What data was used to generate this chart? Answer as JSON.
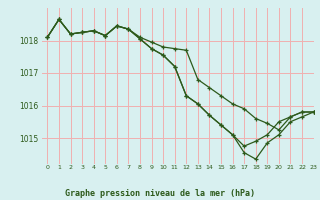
{
  "title": "Graphe pression niveau de la mer (hPa)",
  "bg_color": "#d8f0f0",
  "plot_bg_color": "#d8f0f0",
  "grid_color": "#f0b0b0",
  "line_color": "#2d5a1b",
  "xlim": [
    -0.5,
    23
  ],
  "ylim": [
    1014.2,
    1019.0
  ],
  "yticks": [
    1015,
    1016,
    1017,
    1018
  ],
  "xticks": [
    0,
    1,
    2,
    3,
    4,
    5,
    6,
    7,
    8,
    9,
    10,
    11,
    12,
    13,
    14,
    15,
    16,
    17,
    18,
    19,
    20,
    21,
    22,
    23
  ],
  "series": [
    {
      "x": [
        0,
        1,
        2,
        3,
        4,
        5,
        6,
        7,
        8,
        9,
        10,
        11,
        12,
        13,
        14,
        15,
        16,
        17,
        18,
        19,
        20,
        21,
        22,
        23
      ],
      "y": [
        1018.1,
        1018.65,
        1018.2,
        1018.25,
        1018.3,
        1018.15,
        1018.45,
        1018.35,
        1018.1,
        1017.95,
        1017.8,
        1017.75,
        1017.7,
        1016.8,
        1016.55,
        1016.3,
        1016.05,
        1015.9,
        1015.6,
        1015.45,
        1015.25,
        1015.65,
        1015.8,
        1015.8
      ]
    },
    {
      "x": [
        0,
        1,
        2,
        3,
        4,
        5,
        6,
        7,
        8,
        9,
        10,
        11,
        12,
        13,
        14,
        15,
        16,
        17,
        18,
        19,
        20,
        21,
        22,
        23
      ],
      "y": [
        1018.1,
        1018.65,
        1018.2,
        1018.25,
        1018.3,
        1018.15,
        1018.45,
        1018.35,
        1018.05,
        1017.75,
        1017.55,
        1017.2,
        1016.3,
        1016.05,
        1015.7,
        1015.4,
        1015.1,
        1014.75,
        1014.9,
        1015.1,
        1015.5,
        1015.65,
        1015.8,
        1015.8
      ]
    },
    {
      "x": [
        0,
        1,
        2,
        3,
        4,
        5,
        6,
        7,
        8,
        9,
        10,
        11,
        12,
        13,
        14,
        15,
        16,
        17,
        18,
        19,
        20,
        21,
        22,
        23
      ],
      "y": [
        1018.1,
        1018.65,
        1018.2,
        1018.25,
        1018.3,
        1018.15,
        1018.45,
        1018.35,
        1018.05,
        1017.75,
        1017.55,
        1017.2,
        1016.3,
        1016.05,
        1015.7,
        1015.4,
        1015.1,
        1014.55,
        1014.35,
        1014.85,
        1015.1,
        1015.5,
        1015.65,
        1015.8
      ]
    }
  ]
}
